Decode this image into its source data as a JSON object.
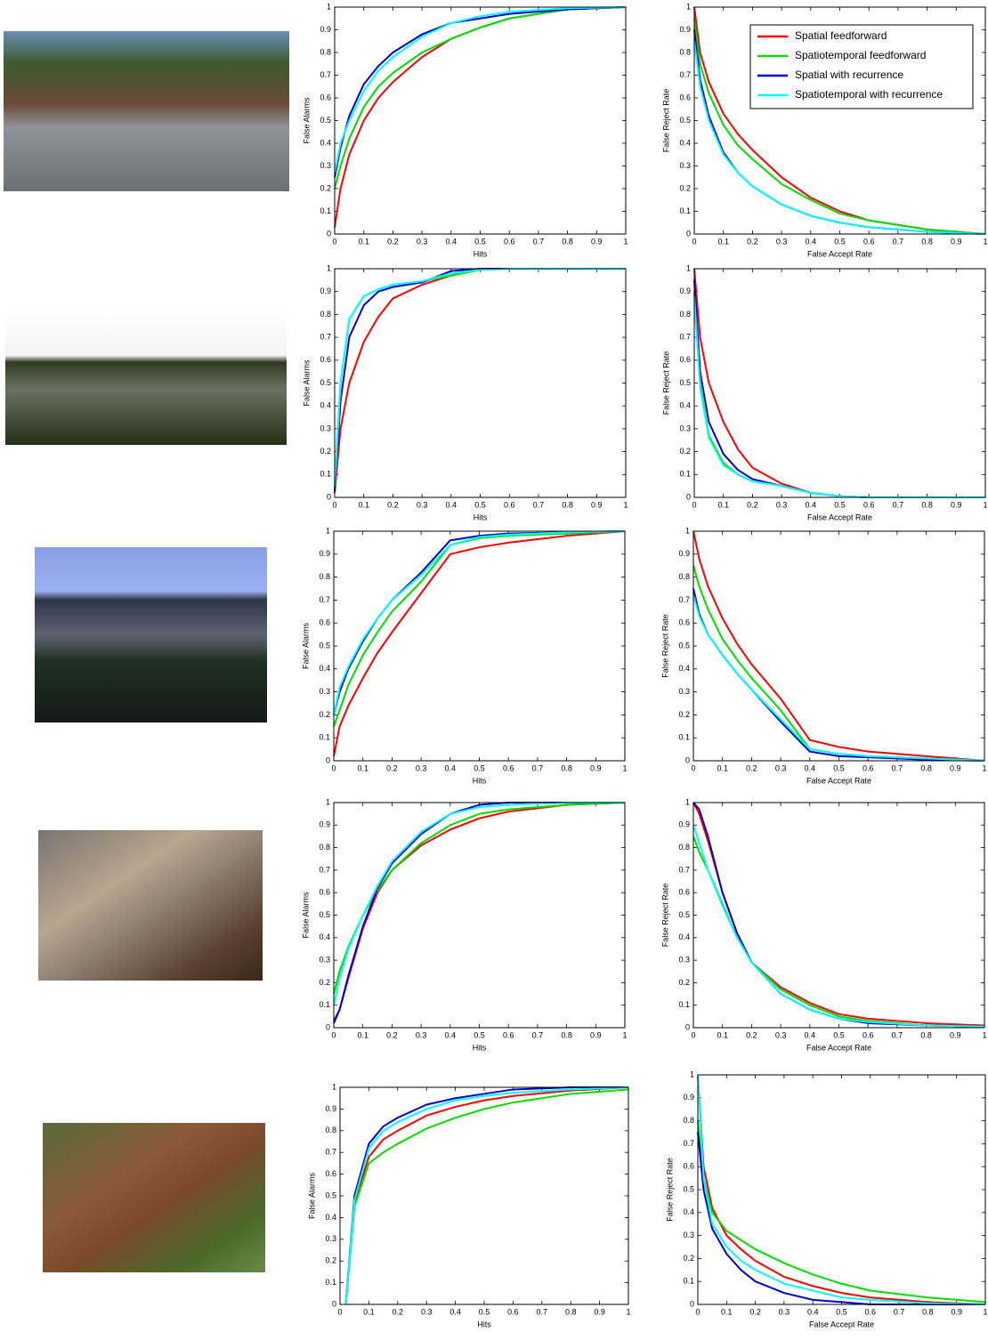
{
  "chart_data": [
    {
      "type": "line",
      "xlabel": "Hits",
      "ylabel": "False Alarms",
      "xlim": [
        0,
        1
      ],
      "ylim": [
        0,
        1
      ],
      "xticks": [
        0,
        0.1,
        0.2,
        0.3,
        0.4,
        0.5,
        0.6,
        0.7,
        0.8,
        0.9,
        1
      ],
      "yticks": [
        0,
        0.1,
        0.2,
        0.3,
        0.4,
        0.5,
        0.6,
        0.7,
        0.8,
        0.9,
        1
      ],
      "x": [
        0,
        0.02,
        0.05,
        0.1,
        0.15,
        0.2,
        0.3,
        0.4,
        0.5,
        0.6,
        0.8,
        1
      ],
      "series": [
        {
          "color": "#ff0000",
          "values": [
            0.03,
            0.2,
            0.35,
            0.5,
            0.6,
            0.67,
            0.78,
            0.86,
            0.91,
            0.95,
            0.99,
            1
          ]
        },
        {
          "color": "#00dd00",
          "values": [
            0.2,
            0.3,
            0.42,
            0.56,
            0.65,
            0.71,
            0.8,
            0.86,
            0.91,
            0.95,
            0.99,
            1
          ]
        },
        {
          "color": "#0000cc",
          "values": [
            0.25,
            0.38,
            0.52,
            0.66,
            0.74,
            0.8,
            0.88,
            0.93,
            0.95,
            0.97,
            0.99,
            1
          ]
        },
        {
          "color": "#00ffff",
          "values": [
            0.27,
            0.4,
            0.5,
            0.63,
            0.72,
            0.78,
            0.87,
            0.93,
            0.96,
            0.98,
            0.995,
            1
          ]
        }
      ]
    },
    {
      "type": "line",
      "xlabel": "False Accept Rate",
      "ylabel": "False Reject Rate",
      "xlim": [
        0,
        1
      ],
      "ylim": [
        0,
        1
      ],
      "xticks": [
        0,
        0.1,
        0.2,
        0.3,
        0.4,
        0.5,
        0.6,
        0.7,
        0.8,
        0.9,
        1
      ],
      "yticks": [
        0,
        0.1,
        0.2,
        0.3,
        0.4,
        0.5,
        0.6,
        0.7,
        0.8,
        0.9,
        1
      ],
      "legend": "upper right",
      "x": [
        0,
        0.02,
        0.05,
        0.1,
        0.15,
        0.2,
        0.3,
        0.4,
        0.5,
        0.6,
        0.8,
        1
      ],
      "series": [
        {
          "name": "Spatial feedforward",
          "color": "#ff0000",
          "values": [
            1,
            0.8,
            0.67,
            0.53,
            0.44,
            0.37,
            0.25,
            0.16,
            0.1,
            0.06,
            0.02,
            0
          ]
        },
        {
          "name": "Spatiotemporal feedforward",
          "color": "#00dd00",
          "values": [
            0.95,
            0.75,
            0.62,
            0.48,
            0.39,
            0.33,
            0.22,
            0.15,
            0.09,
            0.06,
            0.02,
            0
          ]
        },
        {
          "name": "Spatial with recurrence",
          "color": "#0000cc",
          "values": [
            0.9,
            0.68,
            0.52,
            0.36,
            0.27,
            0.21,
            0.13,
            0.08,
            0.05,
            0.03,
            0.01,
            0
          ]
        },
        {
          "name": "Spatiotemporal with recurrence",
          "color": "#00ffff",
          "values": [
            0.85,
            0.65,
            0.5,
            0.35,
            0.27,
            0.21,
            0.13,
            0.08,
            0.05,
            0.03,
            0.01,
            0
          ]
        }
      ]
    },
    {
      "type": "line",
      "xlabel": "Hits",
      "ylabel": "False Alarms",
      "xlim": [
        0,
        1
      ],
      "ylim": [
        0,
        1
      ],
      "xticks": [
        0,
        0.1,
        0.2,
        0.3,
        0.4,
        0.5,
        0.6,
        0.7,
        0.8,
        0.9,
        1
      ],
      "yticks": [
        0,
        0.1,
        0.2,
        0.3,
        0.4,
        0.5,
        0.6,
        0.7,
        0.8,
        0.9,
        1
      ],
      "x": [
        0,
        0.02,
        0.05,
        0.1,
        0.15,
        0.2,
        0.3,
        0.4,
        0.5,
        0.6,
        0.8,
        1
      ],
      "series": [
        {
          "color": "#ff0000",
          "values": [
            0.02,
            0.3,
            0.5,
            0.68,
            0.79,
            0.87,
            0.93,
            0.97,
            1,
            1,
            1,
            1
          ]
        },
        {
          "color": "#00dd00",
          "values": [
            0.05,
            0.5,
            0.78,
            0.88,
            0.91,
            0.93,
            0.945,
            0.97,
            0.995,
            1,
            1,
            1
          ]
        },
        {
          "color": "#0000cc",
          "values": [
            0.03,
            0.42,
            0.7,
            0.84,
            0.9,
            0.92,
            0.94,
            0.99,
            1,
            1,
            1,
            1
          ]
        },
        {
          "color": "#00ffff",
          "values": [
            0.05,
            0.5,
            0.78,
            0.88,
            0.91,
            0.93,
            0.945,
            0.98,
            0.995,
            1,
            1,
            1
          ]
        }
      ]
    },
    {
      "type": "line",
      "xlabel": "False Accept Rate",
      "ylabel": "False Reject Rate",
      "xlim": [
        0,
        1
      ],
      "ylim": [
        0,
        1
      ],
      "xticks": [
        0,
        0.1,
        0.2,
        0.3,
        0.4,
        0.5,
        0.6,
        0.7,
        0.8,
        0.9,
        1
      ],
      "yticks": [
        0,
        0.1,
        0.2,
        0.3,
        0.4,
        0.5,
        0.6,
        0.7,
        0.8,
        0.9,
        1
      ],
      "x": [
        0,
        0.02,
        0.05,
        0.1,
        0.15,
        0.2,
        0.3,
        0.4,
        0.5,
        0.6,
        0.8,
        1
      ],
      "series": [
        {
          "color": "#ff0000",
          "values": [
            1,
            0.7,
            0.5,
            0.33,
            0.21,
            0.13,
            0.06,
            0.02,
            0.005,
            0,
            0,
            0
          ]
        },
        {
          "color": "#00dd00",
          "values": [
            0.9,
            0.5,
            0.27,
            0.15,
            0.1,
            0.07,
            0.05,
            0.02,
            0.005,
            0,
            0,
            0
          ]
        },
        {
          "color": "#0000cc",
          "values": [
            0.95,
            0.55,
            0.33,
            0.19,
            0.12,
            0.08,
            0.05,
            0.02,
            0.005,
            0,
            0,
            0
          ]
        },
        {
          "color": "#00ffff",
          "values": [
            0.88,
            0.48,
            0.26,
            0.14,
            0.1,
            0.07,
            0.05,
            0.02,
            0.005,
            0,
            0,
            0
          ]
        }
      ]
    },
    {
      "type": "line",
      "xlabel": "Hits",
      "ylabel": "False Alarms",
      "xlim": [
        0,
        1
      ],
      "ylim": [
        0,
        1
      ],
      "xticks": [
        0,
        0.1,
        0.2,
        0.3,
        0.4,
        0.5,
        0.6,
        0.7,
        0.8,
        0.9,
        1
      ],
      "yticks": [
        0,
        0.1,
        0.2,
        0.3,
        0.4,
        0.5,
        0.6,
        0.7,
        0.8,
        0.9,
        1
      ],
      "x": [
        0,
        0.02,
        0.05,
        0.1,
        0.15,
        0.2,
        0.3,
        0.4,
        0.5,
        0.6,
        0.8,
        1
      ],
      "series": [
        {
          "color": "#ff0000",
          "values": [
            0.02,
            0.15,
            0.24,
            0.36,
            0.47,
            0.56,
            0.73,
            0.9,
            0.93,
            0.95,
            0.98,
            1
          ]
        },
        {
          "color": "#00dd00",
          "values": [
            0.15,
            0.22,
            0.33,
            0.46,
            0.56,
            0.65,
            0.78,
            0.94,
            0.97,
            0.98,
            0.99,
            1
          ]
        },
        {
          "color": "#0000cc",
          "values": [
            0.2,
            0.3,
            0.4,
            0.52,
            0.62,
            0.7,
            0.82,
            0.96,
            0.98,
            0.99,
            0.995,
            1
          ]
        },
        {
          "color": "#00ffff",
          "values": [
            0.2,
            0.32,
            0.41,
            0.53,
            0.62,
            0.7,
            0.81,
            0.94,
            0.975,
            0.985,
            0.995,
            1
          ]
        }
      ]
    },
    {
      "type": "line",
      "xlabel": "False Accept Rate",
      "ylabel": "False Reject Rate",
      "xlim": [
        0,
        1
      ],
      "ylim": [
        0,
        1
      ],
      "xticks": [
        0,
        0.1,
        0.2,
        0.3,
        0.4,
        0.5,
        0.6,
        0.7,
        0.8,
        0.9,
        1
      ],
      "yticks": [
        0,
        0.1,
        0.2,
        0.3,
        0.4,
        0.5,
        0.6,
        0.7,
        0.8,
        0.9,
        1
      ],
      "x": [
        0,
        0.02,
        0.05,
        0.1,
        0.15,
        0.2,
        0.3,
        0.4,
        0.5,
        0.6,
        0.8,
        1
      ],
      "series": [
        {
          "color": "#ff0000",
          "values": [
            1,
            0.88,
            0.76,
            0.62,
            0.51,
            0.42,
            0.27,
            0.09,
            0.06,
            0.04,
            0.02,
            0
          ]
        },
        {
          "color": "#00dd00",
          "values": [
            0.85,
            0.76,
            0.66,
            0.53,
            0.44,
            0.36,
            0.22,
            0.05,
            0.03,
            0.02,
            0.01,
            0
          ]
        },
        {
          "color": "#0000cc",
          "values": [
            0.75,
            0.64,
            0.55,
            0.46,
            0.38,
            0.31,
            0.17,
            0.04,
            0.02,
            0.015,
            0.005,
            0
          ]
        },
        {
          "color": "#00ffff",
          "values": [
            0.72,
            0.63,
            0.55,
            0.46,
            0.38,
            0.31,
            0.18,
            0.05,
            0.03,
            0.02,
            0.01,
            0
          ]
        }
      ]
    },
    {
      "type": "line",
      "xlabel": "Hits",
      "ylabel": "False Alarms",
      "xlim": [
        0,
        1
      ],
      "ylim": [
        0,
        1
      ],
      "xticks": [
        0,
        0.1,
        0.2,
        0.3,
        0.4,
        0.5,
        0.6,
        0.7,
        0.8,
        0.9,
        1
      ],
      "yticks": [
        0,
        0.1,
        0.2,
        0.3,
        0.4,
        0.5,
        0.6,
        0.7,
        0.8,
        0.9,
        1
      ],
      "x": [
        0,
        0.02,
        0.05,
        0.1,
        0.15,
        0.2,
        0.3,
        0.4,
        0.5,
        0.6,
        0.8,
        1
      ],
      "series": [
        {
          "color": "#ff0000",
          "values": [
            0.03,
            0.08,
            0.22,
            0.44,
            0.6,
            0.7,
            0.81,
            0.88,
            0.93,
            0.96,
            0.99,
            1
          ]
        },
        {
          "color": "#00dd00",
          "values": [
            0.15,
            0.25,
            0.36,
            0.5,
            0.61,
            0.7,
            0.82,
            0.9,
            0.95,
            0.97,
            0.99,
            1
          ]
        },
        {
          "color": "#0000cc",
          "values": [
            0.02,
            0.08,
            0.23,
            0.45,
            0.62,
            0.73,
            0.86,
            0.95,
            0.99,
            1,
            1,
            1
          ]
        },
        {
          "color": "#00ffff",
          "values": [
            0.1,
            0.22,
            0.35,
            0.5,
            0.63,
            0.74,
            0.87,
            0.95,
            0.98,
            0.99,
            1,
            1
          ]
        }
      ]
    },
    {
      "type": "line",
      "xlabel": "False Accept Rate",
      "ylabel": "False Reject Rate",
      "xlim": [
        0,
        1
      ],
      "ylim": [
        0,
        1
      ],
      "xticks": [
        0,
        0.1,
        0.2,
        0.3,
        0.4,
        0.5,
        0.6,
        0.7,
        0.8,
        0.9,
        1
      ],
      "yticks": [
        0,
        0.1,
        0.2,
        0.3,
        0.4,
        0.5,
        0.6,
        0.7,
        0.8,
        0.9,
        1
      ],
      "x": [
        0,
        0.02,
        0.05,
        0.1,
        0.15,
        0.2,
        0.3,
        0.4,
        0.5,
        0.6,
        0.8,
        1
      ],
      "series": [
        {
          "color": "#ff0000",
          "values": [
            1,
            0.95,
            0.83,
            0.6,
            0.42,
            0.29,
            0.18,
            0.11,
            0.06,
            0.04,
            0.02,
            0.01
          ]
        },
        {
          "color": "#00dd00",
          "values": [
            0.85,
            0.78,
            0.7,
            0.55,
            0.4,
            0.29,
            0.17,
            0.1,
            0.05,
            0.03,
            0.01,
            0.005
          ]
        },
        {
          "color": "#0000cc",
          "values": [
            1,
            0.97,
            0.85,
            0.6,
            0.42,
            0.29,
            0.15,
            0.08,
            0.04,
            0.02,
            0.01,
            0.005
          ]
        },
        {
          "color": "#00ffff",
          "values": [
            0.9,
            0.82,
            0.7,
            0.54,
            0.4,
            0.29,
            0.15,
            0.08,
            0.04,
            0.025,
            0.01,
            0.005
          ]
        }
      ]
    },
    {
      "type": "line",
      "xlabel": "Hits",
      "ylabel": "False Alarms",
      "xlim": [
        0,
        1
      ],
      "ylim": [
        0,
        1
      ],
      "xticks": [
        0,
        0.1,
        0.2,
        0.3,
        0.4,
        0.5,
        0.6,
        0.7,
        0.8,
        0.9,
        1
      ],
      "yticks": [
        0,
        0.1,
        0.2,
        0.3,
        0.4,
        0.5,
        0.6,
        0.7,
        0.8,
        0.9,
        1
      ],
      "x": [
        0,
        0.02,
        0.05,
        0.1,
        0.15,
        0.2,
        0.3,
        0.4,
        0.5,
        0.6,
        0.8,
        1
      ],
      "series": [
        {
          "color": "#ff0000",
          "values": [
            null,
            0,
            0.47,
            0.68,
            0.76,
            0.8,
            0.87,
            0.91,
            0.94,
            0.96,
            0.985,
            1
          ]
        },
        {
          "color": "#00dd00",
          "values": [
            null,
            0,
            0.45,
            0.65,
            0.7,
            0.74,
            0.81,
            0.86,
            0.9,
            0.93,
            0.97,
            0.99
          ]
        },
        {
          "color": "#0000cc",
          "values": [
            null,
            0,
            0.5,
            0.74,
            0.82,
            0.86,
            0.92,
            0.95,
            0.97,
            0.99,
            1,
            1
          ]
        },
        {
          "color": "#00ffff",
          "values": [
            null,
            0,
            0.48,
            0.72,
            0.8,
            0.84,
            0.9,
            0.94,
            0.96,
            0.975,
            0.99,
            1
          ]
        }
      ]
    },
    {
      "type": "line",
      "xlabel": "False Accept Rate",
      "ylabel": "False Reject Rate",
      "xlim": [
        0,
        1
      ],
      "ylim": [
        0,
        1
      ],
      "xticks": [
        0,
        0.1,
        0.2,
        0.3,
        0.4,
        0.5,
        0.6,
        0.7,
        0.8,
        0.9,
        1
      ],
      "yticks": [
        0,
        0.1,
        0.2,
        0.3,
        0.4,
        0.5,
        0.6,
        0.7,
        0.8,
        0.9,
        1
      ],
      "x": [
        0,
        0.02,
        0.05,
        0.1,
        0.15,
        0.2,
        0.3,
        0.4,
        0.5,
        0.6,
        0.8,
        1
      ],
      "series": [
        {
          "color": "#ff0000",
          "values": [
            1,
            0.6,
            0.42,
            0.3,
            0.24,
            0.19,
            0.12,
            0.08,
            0.05,
            0.03,
            0.01,
            0
          ]
        },
        {
          "color": "#00dd00",
          "values": [
            0.8,
            0.55,
            0.4,
            0.32,
            0.28,
            0.24,
            0.18,
            0.13,
            0.09,
            0.06,
            0.03,
            0.01
          ]
        },
        {
          "color": "#0000cc",
          "values": [
            0.75,
            0.5,
            0.33,
            0.22,
            0.15,
            0.1,
            0.05,
            0.02,
            0.01,
            0,
            0,
            0
          ]
        },
        {
          "color": "#00ffff",
          "values": [
            1,
            0.55,
            0.35,
            0.25,
            0.19,
            0.15,
            0.09,
            0.06,
            0.03,
            0.02,
            0.005,
            0
          ]
        }
      ]
    }
  ]
}
